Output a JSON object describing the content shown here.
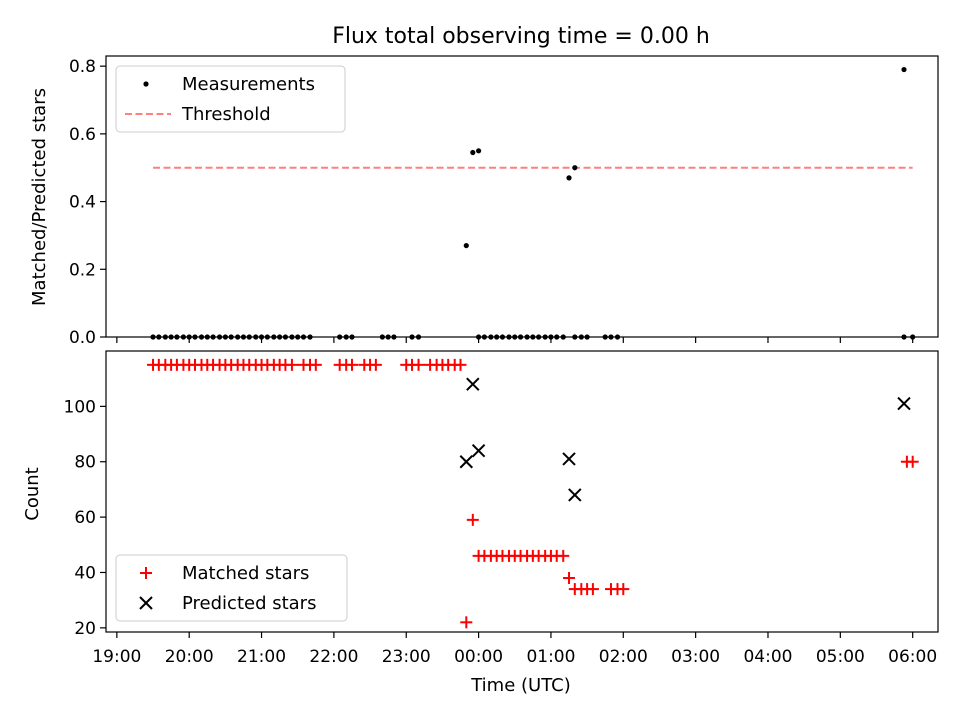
{
  "figure": {
    "title": "Flux total observing time = 0.00 h"
  },
  "chart_data": [
    {
      "type": "scatter",
      "panel": "top",
      "ylabel": "Matched/Predicted stars",
      "xlabel": "",
      "xlim": [
        -5.15,
        6.35
      ],
      "ylim": [
        0,
        0.83
      ],
      "yticks": [
        0.0,
        0.2,
        0.4,
        0.6,
        0.8
      ],
      "ytick_labels": [
        "0.0",
        "0.2",
        "0.4",
        "0.6",
        "0.8"
      ],
      "legend_position": "upper left",
      "legend": [
        {
          "label": "Measurements",
          "marker": "dot",
          "color": "#000000"
        },
        {
          "label": "Threshold",
          "marker": "dashed-line",
          "color": "#ff7f7f"
        }
      ],
      "threshold": {
        "value": 0.5,
        "x_range": [
          -4.5,
          6.0
        ],
        "color": "#ff7f7f"
      },
      "series": [
        {
          "name": "Measurements",
          "color": "#000000",
          "x": [
            -4.5,
            -4.42,
            -4.33,
            -4.25,
            -4.17,
            -4.08,
            -4.0,
            -3.92,
            -3.83,
            -3.75,
            -3.67,
            -3.58,
            -3.5,
            -3.42,
            -3.33,
            -3.25,
            -3.17,
            -3.08,
            -3.0,
            -2.92,
            -2.83,
            -2.75,
            -2.67,
            -2.58,
            -2.5,
            -2.42,
            -2.33,
            -1.92,
            -1.83,
            -1.75,
            -1.33,
            -1.25,
            -1.17,
            -0.92,
            -0.83,
            0.0,
            0.08,
            0.17,
            0.25,
            0.33,
            0.42,
            0.5,
            0.58,
            0.67,
            0.75,
            0.83,
            0.92,
            1.0,
            1.08,
            1.17,
            1.33,
            1.42,
            1.5,
            1.75,
            1.83,
            1.92,
            5.88,
            6.0,
            -0.17,
            -0.08,
            -0.17,
            -0.08,
            -0.25,
            -0.33,
            -0.5,
            -0.58,
            -0.67,
            -0.75,
            -0.83,
            -0.92,
            -1.0,
            -1.08,
            -1.17,
            -1.25,
            -1.33,
            -1.42,
            -1.5,
            -1.58,
            -1.67,
            -1.75,
            -1.83,
            -1.92,
            -2.0,
            -2.08,
            -2.17,
            -2.25,
            -2.33,
            -2.42,
            -2.5,
            -2.58,
            -2.67,
            -2.75,
            -2.83,
            -2.92,
            -3.0,
            -0.17,
            -0.08,
            0.0,
            1.25,
            1.33,
            5.88
          ],
          "y": [
            0,
            0,
            0,
            0,
            0,
            0,
            0,
            0,
            0,
            0,
            0,
            0,
            0,
            0,
            0,
            0,
            0,
            0,
            0,
            0,
            0,
            0,
            0,
            0,
            0,
            0,
            0,
            0,
            0,
            0,
            0,
            0,
            0,
            0,
            0,
            0,
            0,
            0,
            0,
            0,
            0,
            0,
            0,
            0,
            0,
            0,
            0,
            0,
            0,
            0,
            0,
            0,
            0,
            0,
            0,
            0,
            0,
            0,
            null,
            null,
            null,
            null,
            null,
            null,
            null,
            null,
            null,
            null,
            null,
            null,
            null,
            null,
            null,
            null,
            null,
            null,
            null,
            null,
            null,
            null,
            null,
            null,
            null,
            null,
            null,
            null,
            null,
            null,
            null,
            null,
            null,
            null,
            null,
            null,
            null,
            0.27,
            0.545,
            0.55,
            0.47,
            0.5,
            0.79
          ]
        }
      ]
    },
    {
      "type": "scatter",
      "panel": "bottom",
      "ylabel": "Count",
      "xlabel": "Time (UTC)",
      "xlim": [
        -5.15,
        6.35
      ],
      "ylim": [
        18.5,
        120
      ],
      "yticks": [
        20,
        40,
        60,
        80,
        100
      ],
      "ytick_labels": [
        "20",
        "40",
        "60",
        "80",
        "100"
      ],
      "xticks": [
        -5,
        -4,
        -3,
        -2,
        -1,
        0,
        1,
        2,
        3,
        4,
        5,
        6
      ],
      "xtick_labels": [
        "19:00",
        "20:00",
        "21:00",
        "22:00",
        "23:00",
        "00:00",
        "01:00",
        "02:00",
        "03:00",
        "04:00",
        "05:00",
        "06:00"
      ],
      "legend_position": "lower left",
      "legend": [
        {
          "label": "Matched stars",
          "marker": "plus",
          "color": "#ff0000"
        },
        {
          "label": "Predicted stars",
          "marker": "x",
          "color": "#000000"
        }
      ],
      "series": [
        {
          "name": "Matched stars",
          "color": "#ff0000",
          "x": [
            -4.5,
            -4.42,
            -4.33,
            -4.25,
            -4.17,
            -4.08,
            -4.0,
            -3.92,
            -3.83,
            -3.75,
            -3.67,
            -3.58,
            -3.5,
            -3.42,
            -3.33,
            -3.25,
            -3.17,
            -3.08,
            -3.0,
            -2.92,
            -2.83,
            -2.75,
            -2.67,
            -2.58,
            -2.42,
            -2.33,
            -2.25,
            -1.92,
            -1.83,
            -1.75,
            -1.58,
            -1.5,
            -1.42,
            -1.0,
            -0.92,
            -0.83,
            -0.67,
            -0.58,
            -0.5,
            -0.42,
            -0.33,
            -0.25,
            -0.17,
            -0.08,
            0.0,
            0.08,
            0.17,
            0.25,
            0.33,
            0.42,
            0.5,
            0.58,
            0.67,
            0.75,
            0.83,
            0.92,
            1.0,
            1.08,
            1.17,
            1.25,
            1.33,
            1.42,
            1.5,
            1.58,
            1.83,
            1.92,
            2.0,
            5.92,
            6.0
          ],
          "y": [
            115,
            115,
            115,
            115,
            115,
            115,
            115,
            115,
            115,
            115,
            115,
            115,
            115,
            115,
            115,
            115,
            115,
            115,
            115,
            115,
            115,
            115,
            115,
            115,
            115,
            115,
            115,
            115,
            115,
            115,
            115,
            115,
            115,
            115,
            115,
            115,
            115,
            115,
            115,
            115,
            115,
            115,
            22,
            59,
            46,
            46,
            46,
            46,
            46,
            46,
            46,
            46,
            46,
            46,
            46,
            46,
            46,
            46,
            46,
            38,
            34,
            34,
            34,
            34,
            34,
            34,
            34,
            80,
            80
          ]
        },
        {
          "name": "Predicted stars",
          "color": "#000000",
          "x": [
            -0.17,
            -0.08,
            0.0,
            1.25,
            1.33,
            5.88
          ],
          "y": [
            80,
            108,
            84,
            81,
            68,
            101
          ]
        }
      ]
    }
  ]
}
